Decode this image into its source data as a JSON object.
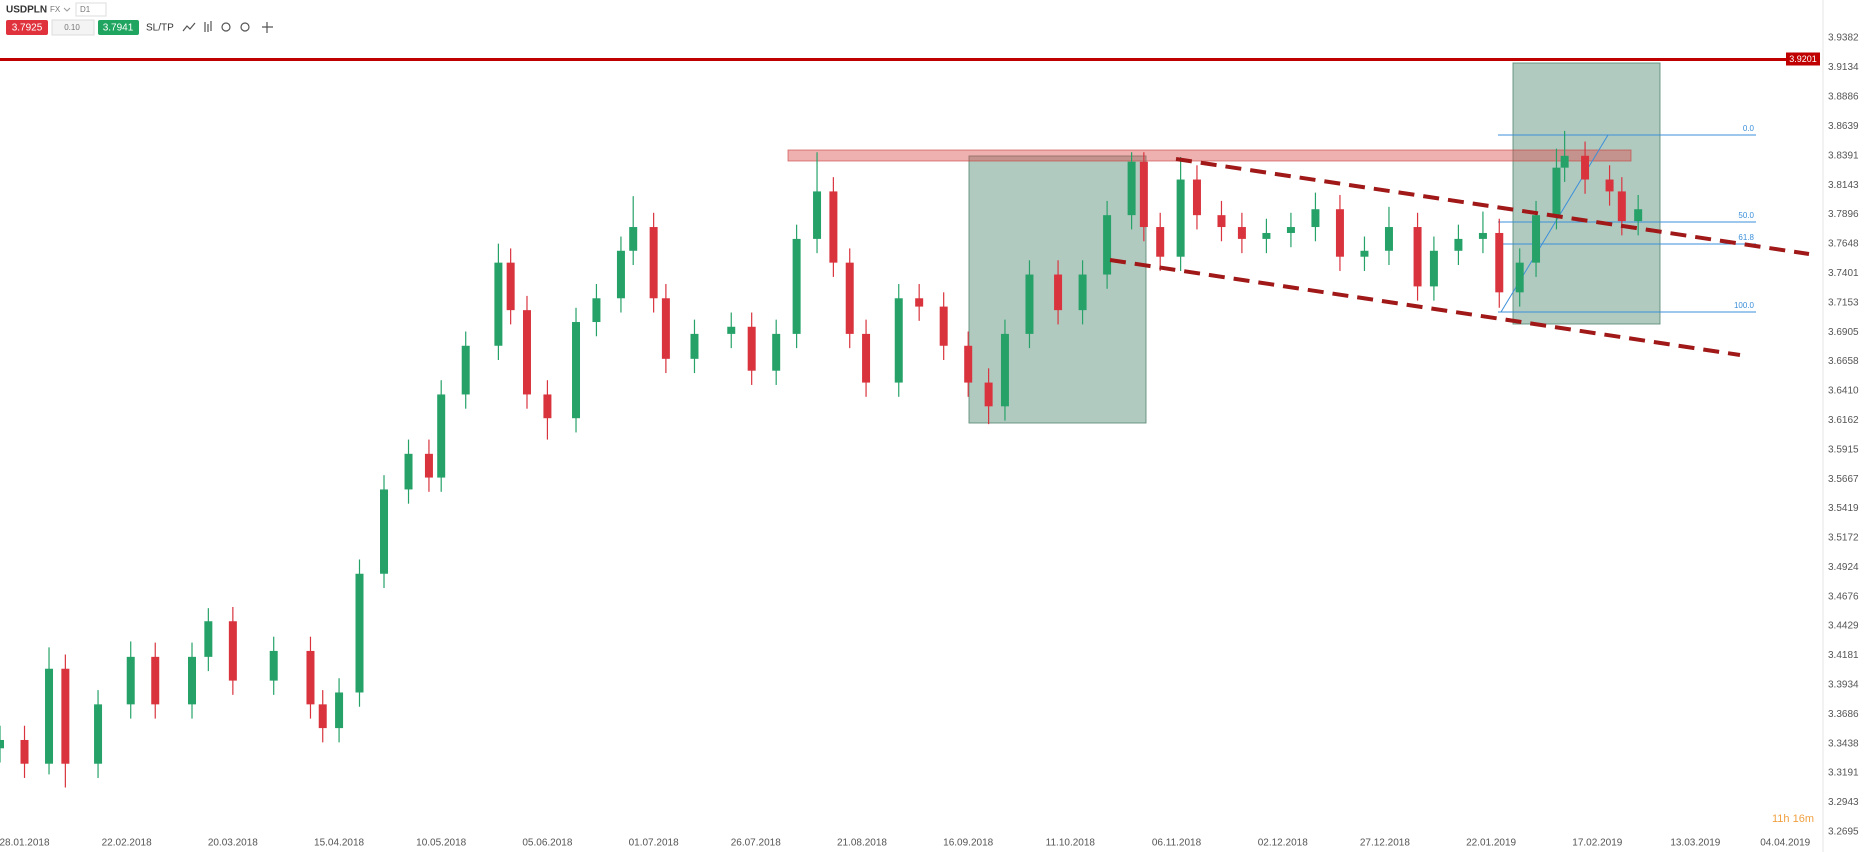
{
  "header": {
    "symbol": "USDPLN",
    "market": "FX",
    "interval": "D1",
    "sell": "3.7925",
    "spread": "0.10",
    "buy": "3.7941",
    "sltp": "SL/TP"
  },
  "footer": {
    "timer": "11h 16m"
  },
  "chart_data": {
    "type": "candlestick",
    "up_color": "#26a269",
    "down_color": "#d9343e",
    "x": [
      "2018-01-22",
      "2018-01-28",
      "2018-02-03",
      "2018-02-07",
      "2018-02-15",
      "2018-02-23",
      "2018-03-01",
      "2018-03-10",
      "2018-03-14",
      "2018-03-20",
      "2018-03-30",
      "2018-04-08",
      "2018-04-11",
      "2018-04-15",
      "2018-04-20",
      "2018-04-26",
      "2018-05-02",
      "2018-05-07",
      "2018-05-10",
      "2018-05-16",
      "2018-05-24",
      "2018-05-27",
      "2018-05-31",
      "2018-06-05",
      "2018-06-12",
      "2018-06-17",
      "2018-06-23",
      "2018-06-26",
      "2018-07-01",
      "2018-07-04",
      "2018-07-11",
      "2018-07-20",
      "2018-07-25",
      "2018-07-31",
      "2018-08-05",
      "2018-08-10",
      "2018-08-14",
      "2018-08-18",
      "2018-08-22",
      "2018-08-30",
      "2018-09-04",
      "2018-09-10",
      "2018-09-16",
      "2018-09-21",
      "2018-09-25",
      "2018-10-01",
      "2018-10-08",
      "2018-10-14",
      "2018-10-20",
      "2018-10-26",
      "2018-10-29",
      "2018-11-02",
      "2018-11-07",
      "2018-11-11",
      "2018-11-17",
      "2018-11-22",
      "2018-11-28",
      "2018-12-04",
      "2018-12-10",
      "2018-12-16",
      "2018-12-22",
      "2018-12-28",
      "2019-01-04",
      "2019-01-08",
      "2019-01-14",
      "2019-01-20",
      "2019-01-24",
      "2019-01-29",
      "2019-02-02",
      "2019-02-07",
      "2019-02-09",
      "2019-02-14",
      "2019-02-20",
      "2019-02-23",
      "2019-02-27"
    ],
    "open": [
      3.34,
      3.347,
      3.327,
      3.407,
      3.327,
      3.377,
      3.417,
      3.377,
      3.417,
      3.447,
      3.397,
      3.422,
      3.377,
      3.357,
      3.387,
      3.487,
      3.558,
      3.588,
      3.568,
      3.638,
      3.679,
      3.749,
      3.709,
      3.638,
      3.618,
      3.699,
      3.719,
      3.759,
      3.779,
      3.719,
      3.668,
      3.689,
      3.695,
      3.658,
      3.689,
      3.769,
      3.809,
      3.749,
      3.689,
      3.648,
      3.719,
      3.712,
      3.679,
      3.648,
      3.628,
      3.689,
      3.739,
      3.709,
      3.739,
      3.789,
      3.834,
      3.779,
      3.754,
      3.819,
      3.789,
      3.779,
      3.769,
      3.774,
      3.779,
      3.794,
      3.754,
      3.759,
      3.779,
      3.729,
      3.759,
      3.769,
      3.774,
      3.724,
      3.749,
      3.789,
      3.829,
      3.839,
      3.819,
      3.809,
      3.784
    ],
    "high": [
      3.359,
      3.359,
      3.425,
      3.419,
      3.389,
      3.43,
      3.429,
      3.429,
      3.458,
      3.459,
      3.434,
      3.434,
      3.389,
      3.399,
      3.499,
      3.57,
      3.6,
      3.6,
      3.65,
      3.691,
      3.765,
      3.761,
      3.721,
      3.65,
      3.711,
      3.731,
      3.771,
      3.805,
      3.791,
      3.731,
      3.701,
      3.707,
      3.707,
      3.701,
      3.781,
      3.842,
      3.821,
      3.761,
      3.701,
      3.731,
      3.731,
      3.724,
      3.691,
      3.66,
      3.701,
      3.751,
      3.751,
      3.751,
      3.801,
      3.842,
      3.842,
      3.791,
      3.838,
      3.831,
      3.801,
      3.791,
      3.786,
      3.791,
      3.808,
      3.806,
      3.771,
      3.796,
      3.791,
      3.771,
      3.781,
      3.792,
      3.786,
      3.761,
      3.801,
      3.845,
      3.86,
      3.851,
      3.831,
      3.821,
      3.806
    ],
    "low": [
      3.328,
      3.315,
      3.318,
      3.307,
      3.315,
      3.365,
      3.365,
      3.365,
      3.405,
      3.385,
      3.385,
      3.365,
      3.345,
      3.345,
      3.375,
      3.475,
      3.546,
      3.556,
      3.556,
      3.626,
      3.667,
      3.697,
      3.626,
      3.6,
      3.606,
      3.687,
      3.707,
      3.747,
      3.707,
      3.656,
      3.656,
      3.677,
      3.646,
      3.646,
      3.677,
      3.757,
      3.737,
      3.677,
      3.636,
      3.636,
      3.7,
      3.667,
      3.636,
      3.613,
      3.616,
      3.677,
      3.697,
      3.697,
      3.727,
      3.777,
      3.767,
      3.742,
      3.742,
      3.777,
      3.767,
      3.757,
      3.757,
      3.762,
      3.767,
      3.742,
      3.742,
      3.747,
      3.717,
      3.717,
      3.747,
      3.757,
      3.711,
      3.712,
      3.737,
      3.777,
      3.817,
      3.807,
      3.797,
      3.772,
      3.772
    ],
    "close": [
      3.347,
      3.327,
      3.407,
      3.327,
      3.377,
      3.417,
      3.377,
      3.417,
      3.447,
      3.397,
      3.422,
      3.377,
      3.357,
      3.387,
      3.487,
      3.558,
      3.588,
      3.568,
      3.638,
      3.679,
      3.749,
      3.709,
      3.638,
      3.618,
      3.699,
      3.719,
      3.759,
      3.779,
      3.719,
      3.668,
      3.689,
      3.695,
      3.658,
      3.689,
      3.769,
      3.809,
      3.749,
      3.689,
      3.648,
      3.719,
      3.712,
      3.679,
      3.648,
      3.628,
      3.689,
      3.739,
      3.709,
      3.739,
      3.789,
      3.834,
      3.779,
      3.754,
      3.819,
      3.789,
      3.779,
      3.769,
      3.774,
      3.779,
      3.794,
      3.754,
      3.759,
      3.779,
      3.729,
      3.759,
      3.769,
      3.774,
      3.724,
      3.749,
      3.789,
      3.829,
      3.839,
      3.819,
      3.809,
      3.784,
      3.794
    ],
    "xlim": [
      "2018-01-22",
      "2019-04-13"
    ],
    "xticks": [
      {
        "value": "2018-01-28",
        "label": "28.01.2018"
      },
      {
        "value": "2018-02-22",
        "label": "22.02.2018"
      },
      {
        "value": "2018-03-20",
        "label": "20.03.2018"
      },
      {
        "value": "2018-04-15",
        "label": "15.04.2018"
      },
      {
        "value": "2018-05-10",
        "label": "10.05.2018"
      },
      {
        "value": "2018-06-05",
        "label": "05.06.2018"
      },
      {
        "value": "2018-07-01",
        "label": "01.07.2018"
      },
      {
        "value": "2018-07-26",
        "label": "26.07.2018"
      },
      {
        "value": "2018-08-21",
        "label": "21.08.2018"
      },
      {
        "value": "2018-09-16",
        "label": "16.09.2018"
      },
      {
        "value": "2018-10-11",
        "label": "11.10.2018"
      },
      {
        "value": "2018-11-06",
        "label": "06.11.2018"
      },
      {
        "value": "2018-12-02",
        "label": "02.12.2018"
      },
      {
        "value": "2018-12-27",
        "label": "27.12.2018"
      },
      {
        "value": "2019-01-22",
        "label": "22.01.2019"
      },
      {
        "value": "2019-02-17",
        "label": "17.02.2019"
      },
      {
        "value": "2019-03-13",
        "label": "13.03.2019"
      },
      {
        "value": "2019-04-04",
        "label": "04.04.2019"
      }
    ],
    "ylim": [
      3.2695,
      3.9382
    ],
    "yticks": [
      3.9382,
      3.9134,
      3.8886,
      3.8639,
      3.8391,
      3.8143,
      3.7896,
      3.7648,
      3.7401,
      3.7153,
      3.6905,
      3.6658,
      {
        "value": 3.641,
        "label": "3.6410"
      },
      3.6162,
      3.5915,
      3.5667,
      3.5419,
      3.5172,
      3.4924,
      3.4676,
      3.4429,
      3.4181,
      3.3934,
      3.3686,
      3.3438,
      3.3191,
      3.2943,
      3.2695
    ],
    "levels": [
      {
        "value": 3.9201,
        "label": "3.9201",
        "color": "#c00000"
      }
    ],
    "fib_labels": [
      "0.0",
      "50.0",
      "61.8",
      "100.0"
    ]
  }
}
